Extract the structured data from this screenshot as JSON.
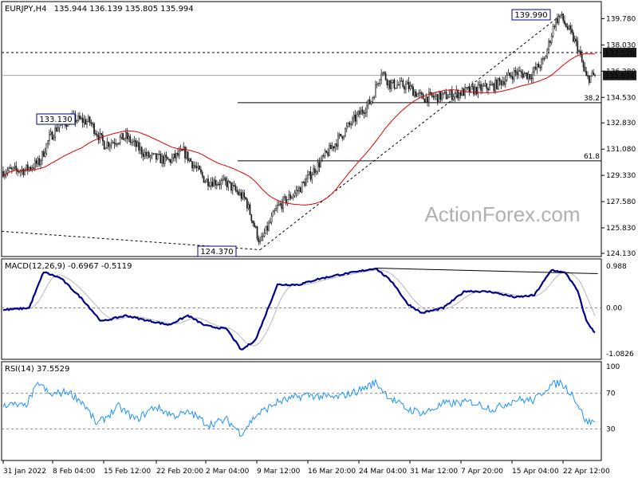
{
  "chart_data": [
    {
      "type": "candlestick",
      "title": "EURJPY,H4",
      "ohlc_header": "135.944 136.139 135.805 135.994",
      "ylim": [
        124.13,
        140.6
      ],
      "y_ticks": [
        "139.780",
        "138.030",
        "136.280",
        "134.530",
        "132.830",
        "131.080",
        "129.330",
        "127.580",
        "125.830",
        "124.130"
      ],
      "x_ticks": [
        "31 Jan 2022",
        "8 Feb 04:00",
        "15 Feb 12:00",
        "22 Feb 20:00",
        "2 Mar 04:00",
        "9 Mar 12:00",
        "16 Mar 20:00",
        "24 Mar 04:00",
        "31 Mar 12:00",
        "7 Apr 20:00",
        "15 Apr 04:00",
        "22 Apr 12:00"
      ],
      "price_tags": [
        {
          "text": "137.520",
          "value": 137.52,
          "style": "dark"
        },
        {
          "text": "135.994",
          "value": 135.994,
          "style": "dark"
        }
      ],
      "callouts": [
        {
          "text": "139.990",
          "value": 139.99
        },
        {
          "text": "133.130",
          "value": 133.13
        },
        {
          "text": "124.370",
          "value": 124.37
        }
      ],
      "horizontal_levels": [
        {
          "value": 137.52,
          "style": "dashed"
        },
        {
          "value": 134.18,
          "label": "38.2",
          "style": "solid"
        },
        {
          "value": 130.3,
          "label": "61.8",
          "style": "solid"
        }
      ],
      "close_line": 135.994,
      "waypoints": [
        [
          0,
          129.6
        ],
        [
          15,
          129.7
        ],
        [
          25,
          130.2
        ],
        [
          32,
          131.8
        ],
        [
          38,
          132.6
        ],
        [
          48,
          133.1
        ],
        [
          60,
          132.9
        ],
        [
          70,
          131.4
        ],
        [
          85,
          131.9
        ],
        [
          100,
          130.6
        ],
        [
          115,
          130.3
        ],
        [
          125,
          130.9
        ],
        [
          140,
          129.0
        ],
        [
          155,
          128.8
        ],
        [
          168,
          127.7
        ],
        [
          178,
          124.8
        ],
        [
          190,
          127.2
        ],
        [
          205,
          128.4
        ],
        [
          222,
          130.5
        ],
        [
          240,
          132.7
        ],
        [
          255,
          134.3
        ],
        [
          262,
          136.3
        ],
        [
          268,
          135.4
        ],
        [
          280,
          135.3
        ],
        [
          290,
          134.5
        ],
        [
          305,
          134.6
        ],
        [
          325,
          135.0
        ],
        [
          340,
          135.3
        ],
        [
          355,
          136.2
        ],
        [
          365,
          136.0
        ],
        [
          375,
          137.0
        ],
        [
          382,
          139.5
        ],
        [
          386,
          139.99
        ],
        [
          393,
          138.8
        ],
        [
          398,
          137.9
        ],
        [
          404,
          135.8
        ],
        [
          410,
          135.994
        ]
      ],
      "watermark": "ActionForex.com"
    },
    {
      "type": "line",
      "title": "MACD(12,26,9) -0.6967 -0.5119",
      "ylim": [
        -1.0826,
        0.988
      ],
      "y_ticks": [
        "0.988",
        "0.00",
        "-1.0826"
      ],
      "series": [
        {
          "name": "MACD",
          "color": "#00008b"
        },
        {
          "name": "Signal",
          "color": "#b0b0b0"
        }
      ],
      "waypoints": [
        [
          0,
          -0.05
        ],
        [
          18,
          0.0
        ],
        [
          28,
          0.85
        ],
        [
          40,
          0.7
        ],
        [
          55,
          0.2
        ],
        [
          68,
          -0.32
        ],
        [
          85,
          -0.18
        ],
        [
          100,
          -0.3
        ],
        [
          115,
          -0.4
        ],
        [
          128,
          -0.18
        ],
        [
          140,
          -0.42
        ],
        [
          155,
          -0.5
        ],
        [
          165,
          -1.0
        ],
        [
          175,
          -0.75
        ],
        [
          190,
          0.55
        ],
        [
          205,
          0.55
        ],
        [
          218,
          0.68
        ],
        [
          232,
          0.78
        ],
        [
          245,
          0.85
        ],
        [
          258,
          0.94
        ],
        [
          270,
          0.6
        ],
        [
          280,
          0.1
        ],
        [
          290,
          -0.12
        ],
        [
          305,
          -0.0
        ],
        [
          320,
          0.4
        ],
        [
          338,
          0.38
        ],
        [
          355,
          0.25
        ],
        [
          368,
          0.3
        ],
        [
          380,
          0.9
        ],
        [
          390,
          0.82
        ],
        [
          398,
          0.4
        ],
        [
          404,
          -0.3
        ],
        [
          410,
          -0.6
        ]
      ],
      "divergence_line": [
        [
          258,
          0.94
        ],
        [
          390,
          0.82
        ]
      ]
    },
    {
      "type": "line",
      "title": "RSI(14) 37.5529",
      "ylim": [
        0,
        100
      ],
      "y_ticks": [
        "100",
        "70",
        "30"
      ],
      "series": [
        {
          "name": "RSI",
          "color": "#1e90ff"
        }
      ],
      "waypoints": [
        [
          0,
          58
        ],
        [
          15,
          55
        ],
        [
          25,
          82
        ],
        [
          32,
          68
        ],
        [
          45,
          72
        ],
        [
          55,
          60
        ],
        [
          65,
          35
        ],
        [
          80,
          55
        ],
        [
          92,
          40
        ],
        [
          105,
          55
        ],
        [
          118,
          45
        ],
        [
          130,
          48
        ],
        [
          142,
          35
        ],
        [
          155,
          40
        ],
        [
          165,
          25
        ],
        [
          175,
          45
        ],
        [
          190,
          60
        ],
        [
          210,
          68
        ],
        [
          230,
          65
        ],
        [
          245,
          72
        ],
        [
          258,
          82
        ],
        [
          268,
          65
        ],
        [
          280,
          52
        ],
        [
          292,
          48
        ],
        [
          305,
          58
        ],
        [
          325,
          60
        ],
        [
          340,
          52
        ],
        [
          355,
          63
        ],
        [
          368,
          62
        ],
        [
          378,
          78
        ],
        [
          386,
          82
        ],
        [
          394,
          70
        ],
        [
          398,
          58
        ],
        [
          404,
          38
        ],
        [
          410,
          37.55
        ]
      ]
    }
  ]
}
